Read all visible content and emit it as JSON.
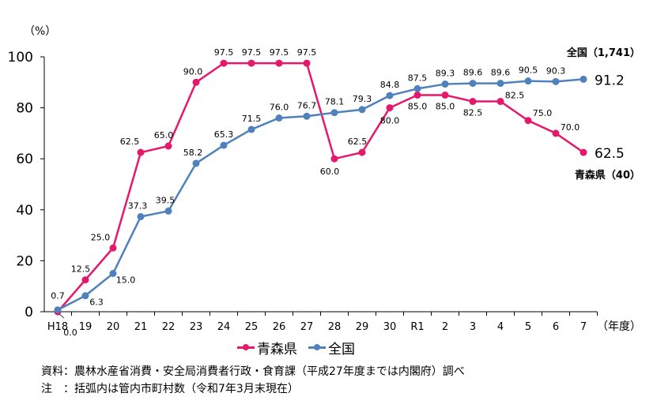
{
  "chart_data": {
    "type": "line",
    "unit_label": "（%）",
    "x_axis_suffix": "（年度）",
    "categories": [
      "H18",
      "19",
      "20",
      "21",
      "22",
      "23",
      "24",
      "25",
      "26",
      "27",
      "28",
      "29",
      "30",
      "R1",
      "2",
      "3",
      "4",
      "5",
      "6",
      "7"
    ],
    "ylim": [
      0,
      100
    ],
    "yticks": [
      "0",
      "20",
      "40",
      "60",
      "80",
      "100"
    ],
    "grid": false,
    "legend_position": "bottom",
    "series": [
      {
        "name": "青森県",
        "color": "#E6186C",
        "end_label": "青森県（40）",
        "values": [
          0.0,
          12.5,
          25.0,
          62.5,
          65.0,
          90.0,
          97.5,
          97.5,
          97.5,
          97.5,
          60.0,
          62.5,
          80.0,
          85.0,
          85.0,
          82.5,
          82.5,
          75.0,
          70.0,
          62.5
        ],
        "labels": [
          "0.0",
          "12.5",
          "25.0",
          "62.5",
          "65.0",
          "90.0",
          "97.5",
          "97.5",
          "97.5",
          "97.5",
          "60.0",
          "62.5",
          "80.0",
          "85.0",
          "85.0",
          "82.5",
          "82.5",
          "75.0",
          "70.0",
          "62.5"
        ]
      },
      {
        "name": "全国",
        "color": "#4F81BD",
        "end_label": "全国（1,741）",
        "values": [
          0.7,
          6.3,
          15.0,
          37.3,
          39.5,
          58.2,
          65.3,
          71.5,
          76.0,
          76.7,
          78.1,
          79.3,
          84.8,
          87.5,
          89.3,
          89.6,
          89.6,
          90.5,
          90.3,
          91.2
        ],
        "labels": [
          "0.7",
          "6.3",
          "15.0",
          "37.3",
          "39.5",
          "58.2",
          "65.3",
          "71.5",
          "76.0",
          "76.7",
          "78.1",
          "79.3",
          "84.8",
          "87.5",
          "89.3",
          "89.6",
          "89.6",
          "90.5",
          "90.3",
          "91.2"
        ]
      }
    ]
  },
  "notes": {
    "source": "資料：農林水産省消費・安全局消費者行政・食育課（平成27年度までは内閣府）調べ",
    "note": "注　：括弧内は管内市町村数（令和7年3月末現在）"
  }
}
